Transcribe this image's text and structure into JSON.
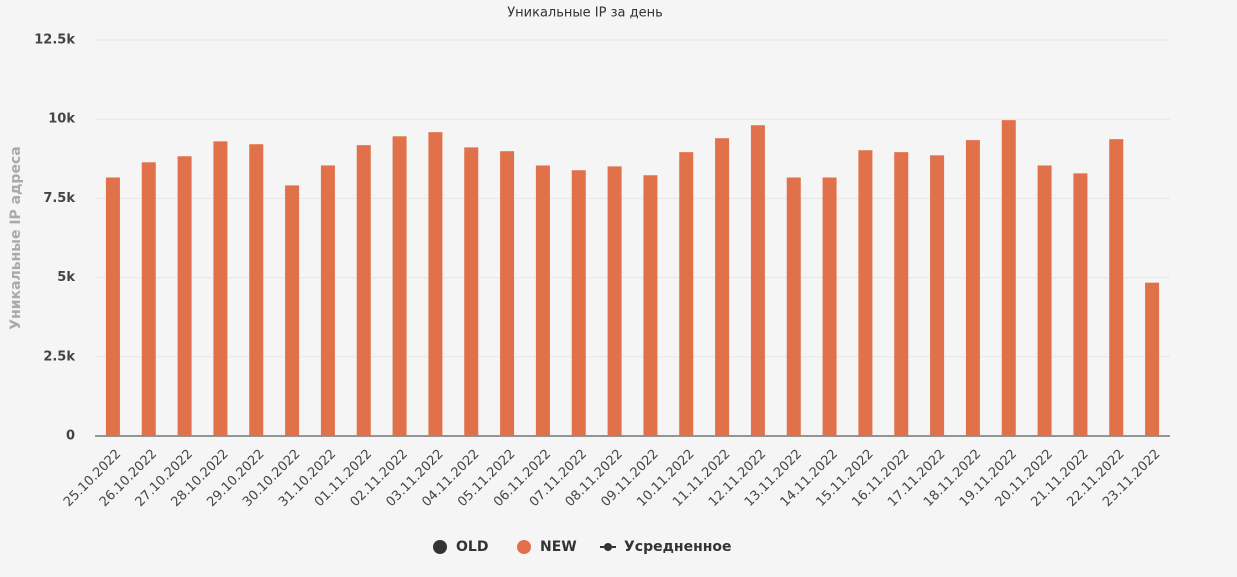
{
  "chart_data": {
    "type": "bar",
    "title": "Уникальные IP за день",
    "y_label": "Уникальные IP адреса",
    "categories": [
      "25.10.2022",
      "26.10.2022",
      "27.10.2022",
      "28.10.2022",
      "29.10.2022",
      "30.10.2022",
      "31.10.2022",
      "01.11.2022",
      "02.11.2022",
      "03.11.2022",
      "04.11.2022",
      "05.11.2022",
      "06.11.2022",
      "07.11.2022",
      "08.11.2022",
      "09.11.2022",
      "10.11.2022",
      "11.11.2022",
      "12.11.2022",
      "13.11.2022",
      "14.11.2022",
      "15.11.2022",
      "16.11.2022",
      "17.11.2022",
      "18.11.2022",
      "19.11.2022",
      "20.11.2022",
      "21.11.2022",
      "22.11.2022",
      "23.11.2022"
    ],
    "series": [
      {
        "name": "OLD",
        "color": "#333333",
        "values": [
          null,
          null,
          null,
          null,
          null,
          null,
          null,
          null,
          null,
          null,
          null,
          null,
          null,
          null,
          null,
          null,
          null,
          null,
          null,
          null,
          null,
          null,
          null,
          null,
          null,
          null,
          null,
          null,
          null,
          null
        ]
      },
      {
        "name": "NEW",
        "color": "#e0714a",
        "values": [
          8160,
          8640,
          8830,
          9300,
          9210,
          7910,
          8540,
          9180,
          9460,
          9590,
          9110,
          8990,
          8540,
          8390,
          8510,
          8230,
          8960,
          9400,
          9810,
          8160,
          8160,
          9020,
          8960,
          8860,
          9340,
          9970,
          8540,
          8290,
          9370,
          4840
        ]
      },
      {
        "name": "Усредненное",
        "color": "#333333",
        "values": [
          null,
          null,
          null,
          null,
          null,
          null,
          null,
          null,
          null,
          null,
          null,
          null,
          null,
          null,
          null,
          null,
          null,
          null,
          null,
          null,
          null,
          null,
          null,
          null,
          null,
          null,
          null,
          null,
          null,
          null
        ]
      }
    ],
    "ylim": [
      0,
      12500
    ],
    "yticks": [
      0,
      {
        "value": 2500,
        "label": "2.5k"
      },
      {
        "value": 5000,
        "label": "5k"
      },
      {
        "value": 7500,
        "label": "7.5k"
      },
      {
        "value": 10000,
        "label": "10k"
      },
      {
        "value": 12500,
        "label": "12.5k"
      }
    ],
    "grid": true
  }
}
